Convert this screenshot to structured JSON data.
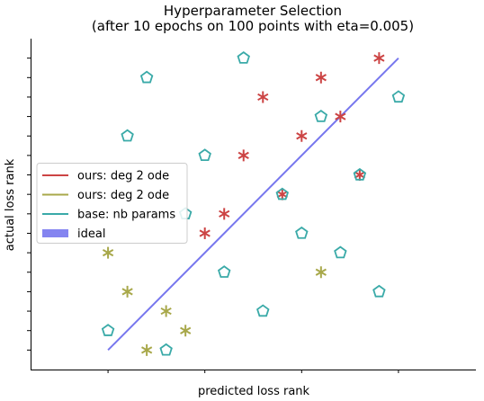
{
  "chart_data": {
    "type": "scatter",
    "title": "Hyperparameter Selection",
    "subtitle": "(after 10 epochs on 100 points with eta=0.005)",
    "xlabel": "predicted loss rank",
    "ylabel": "actual loss rank",
    "xlim": [
      -4,
      19
    ],
    "ylim": [
      -1,
      16
    ],
    "x_ticks": [
      0,
      5,
      10,
      15
    ],
    "y_ticks": [
      0,
      1,
      2,
      3,
      4,
      5,
      6,
      7,
      8,
      9,
      10,
      11,
      12,
      13,
      14,
      15
    ],
    "legend_position": "center-left",
    "series": [
      {
        "name": "ours: deg 2 ode",
        "marker": "star",
        "color": "#cc4444",
        "points": [
          [
            5,
            6
          ],
          [
            6,
            7
          ],
          [
            7,
            10
          ],
          [
            8,
            13
          ],
          [
            9,
            8
          ],
          [
            10,
            11
          ],
          [
            11,
            14
          ],
          [
            12,
            12
          ],
          [
            13,
            9
          ],
          [
            14,
            15
          ]
        ]
      },
      {
        "name": "ours: deg 2 ode",
        "marker": "star",
        "color": "#a8a84a",
        "points": [
          [
            0,
            5
          ],
          [
            1,
            3
          ],
          [
            2,
            0
          ],
          [
            3,
            2
          ],
          [
            4,
            1
          ],
          [
            11,
            4
          ]
        ]
      },
      {
        "name": "base: nb params",
        "marker": "pentagon",
        "color": "#3aaaa8",
        "points": [
          [
            0,
            1
          ],
          [
            1,
            11
          ],
          [
            2,
            14
          ],
          [
            3,
            0
          ],
          [
            4,
            7
          ],
          [
            5,
            10
          ],
          [
            6,
            4
          ],
          [
            7,
            15
          ],
          [
            8,
            2
          ],
          [
            9,
            8
          ],
          [
            10,
            6
          ],
          [
            11,
            12
          ],
          [
            12,
            5
          ],
          [
            13,
            9
          ],
          [
            14,
            3
          ],
          [
            15,
            13
          ]
        ]
      },
      {
        "name": "ideal",
        "type": "line",
        "color": "#7777ee",
        "points": [
          [
            0,
            0
          ],
          [
            15,
            15
          ]
        ]
      }
    ]
  }
}
